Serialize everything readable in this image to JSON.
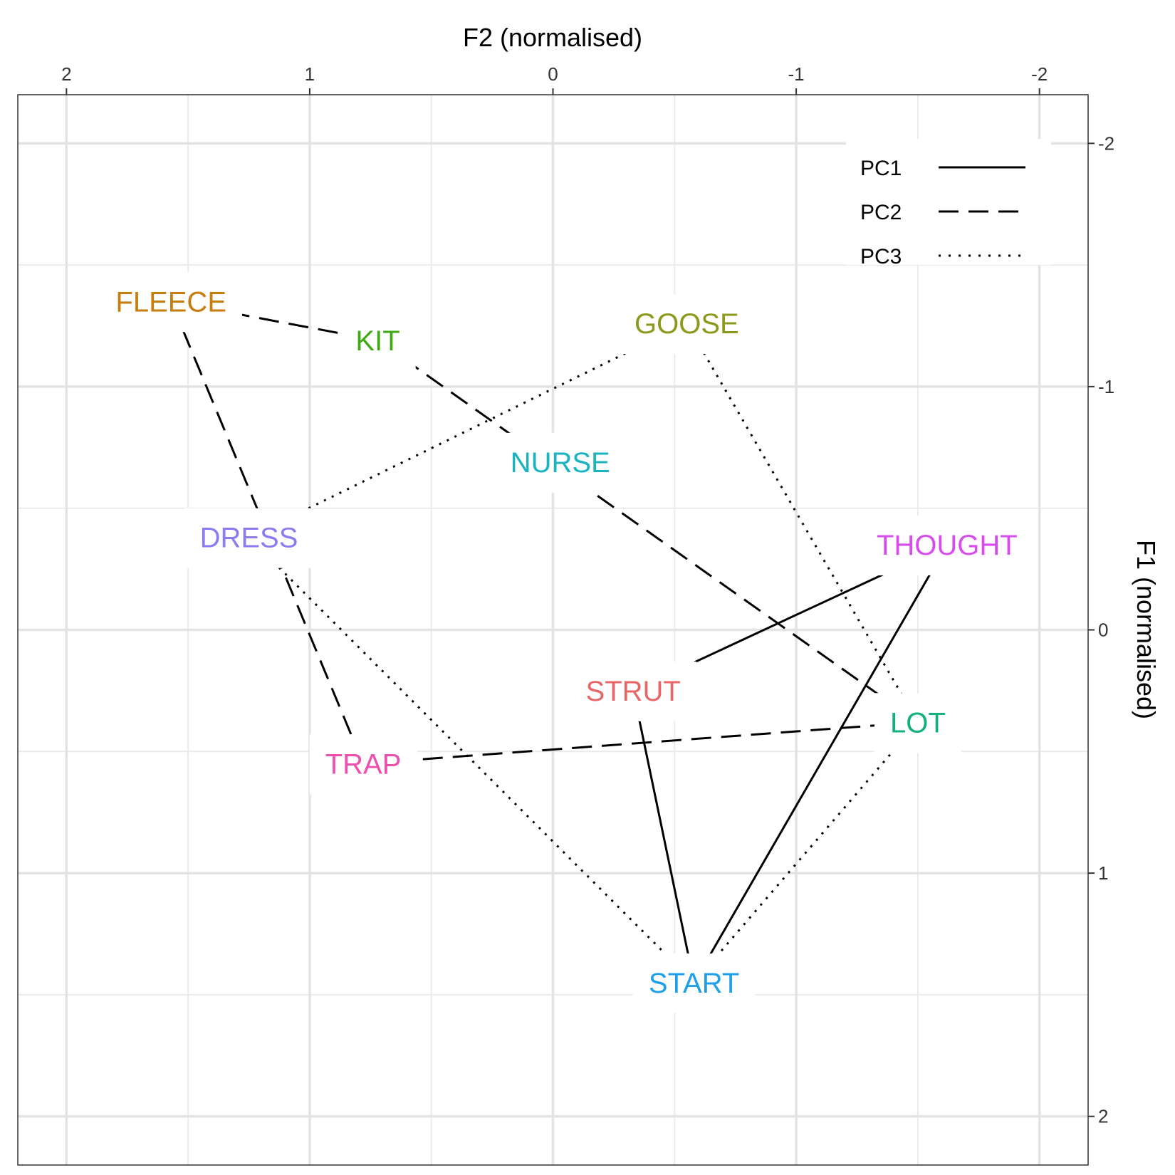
{
  "chart_data": {
    "type": "scatter",
    "title": "",
    "xlabel": "F2 (normalised)",
    "ylabel": "F1 (normalised)",
    "x_axis_position": "top",
    "y_axis_position": "right",
    "x_reversed": true,
    "y_reversed": true,
    "xlim": [
      2.2,
      -2.2
    ],
    "ylim": [
      -2.2,
      2.2
    ],
    "x_ticks": [
      2,
      1,
      0,
      -1,
      -2
    ],
    "x_tick_labels": [
      "2",
      "1",
      "0",
      "-1",
      "-2"
    ],
    "y_ticks": [
      -2,
      -1,
      0,
      1,
      2
    ],
    "y_tick_labels": [
      "-2",
      "-1",
      "0",
      "1",
      "2"
    ],
    "grid": true,
    "points": [
      {
        "label": "FLEECE",
        "x": 1.57,
        "y": -1.35,
        "color": "#C77C0E"
      },
      {
        "label": "KIT",
        "x": 0.72,
        "y": -1.19,
        "color": "#3DAA10"
      },
      {
        "label": "GOOSE",
        "x": -0.55,
        "y": -1.26,
        "color": "#8C9A1A"
      },
      {
        "label": "NURSE",
        "x": -0.03,
        "y": -0.69,
        "color": "#1AB3C0"
      },
      {
        "label": "DRESS",
        "x": 1.25,
        "y": -0.38,
        "color": "#8A7DF0"
      },
      {
        "label": "THOUGHT",
        "x": -1.62,
        "y": -0.35,
        "color": "#D84BEF"
      },
      {
        "label": "STRUT",
        "x": -0.33,
        "y": 0.25,
        "color": "#E86666"
      },
      {
        "label": "LOT",
        "x": -1.5,
        "y": 0.38,
        "color": "#12B07A"
      },
      {
        "label": "TRAP",
        "x": 0.78,
        "y": 0.55,
        "color": "#EE4FAE"
      },
      {
        "label": "START",
        "x": -0.58,
        "y": 1.45,
        "color": "#1E9FE8"
      }
    ],
    "series": [
      {
        "name": "PC1",
        "linestyle": "solid",
        "segments": [
          [
            "STRUT",
            "THOUGHT"
          ],
          [
            "STRUT",
            "START"
          ],
          [
            "START",
            "THOUGHT"
          ]
        ]
      },
      {
        "name": "PC2",
        "linestyle": "dashed",
        "segments": [
          [
            "FLEECE",
            "KIT"
          ],
          [
            "KIT",
            "LOT"
          ],
          [
            "FLEECE",
            "TRAP"
          ],
          [
            "TRAP",
            "LOT"
          ]
        ]
      },
      {
        "name": "PC3",
        "linestyle": "dotted",
        "segments": [
          [
            "GOOSE",
            "DRESS"
          ],
          [
            "DRESS",
            "START"
          ],
          [
            "GOOSE",
            "LOT"
          ],
          [
            "LOT",
            "START"
          ]
        ]
      }
    ],
    "legend": {
      "position": "top-right",
      "entries": [
        "PC1",
        "PC2",
        "PC3"
      ]
    }
  }
}
